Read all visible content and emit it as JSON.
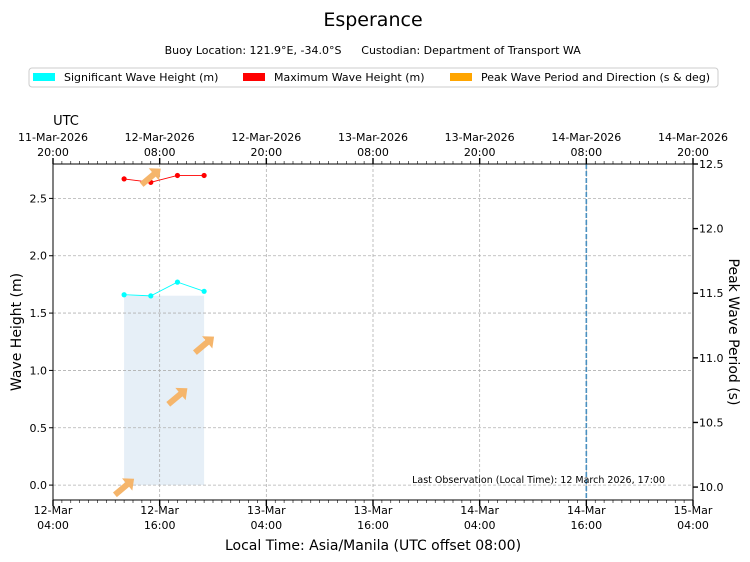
{
  "chart_data": {
    "type": "line",
    "title": "Esperance",
    "subtitle_location": "Buoy Location: 121.9°E, -34.0°S",
    "subtitle_custodian": "Custodian: Department of Transport WA",
    "legend": [
      {
        "label": "Significant Wave Height (m)",
        "color": "#00ffff"
      },
      {
        "label": "Maximum Wave Height (m)",
        "color": "#ff0000"
      },
      {
        "label": "Peak Wave Period and Direction (s & deg)",
        "color": "#ffa500"
      }
    ],
    "x_hours_local": [
      8,
      11,
      14,
      17
    ],
    "series": [
      {
        "name": "Significant Wave Height (m)",
        "color": "#00ffff",
        "values": [
          1.66,
          1.65,
          1.77,
          1.69
        ]
      },
      {
        "name": "Maximum Wave Height (m)",
        "color": "#ff0000",
        "values": [
          2.67,
          2.64,
          2.7,
          2.7
        ]
      }
    ],
    "peak_period": [
      {
        "x_hour": 8,
        "value": 10.0
      },
      {
        "x_hour": 11,
        "value": 12.4
      },
      {
        "x_hour": 14,
        "value": 10.7
      },
      {
        "x_hour": 17,
        "value": 11.1
      }
    ],
    "shade_range_hours": [
      8,
      17
    ],
    "now_marker_hour": 60,
    "xlim_hours": [
      0,
      72
    ],
    "ylim_left": [
      -0.13,
      2.8
    ],
    "ylim_right": [
      9.9,
      12.5
    ],
    "xlabel": "Local Time: Asia/Manila (UTC offset 08:00)",
    "ylabel_left": "Wave Height (m)",
    "ylabel_right": "Peak Wave Period (s)",
    "top_axis_title": "UTC",
    "bottom_ticks": [
      {
        "hour": 0,
        "line1": "12-Mar",
        "line2": "04:00"
      },
      {
        "hour": 12,
        "line1": "12-Mar",
        "line2": "16:00"
      },
      {
        "hour": 24,
        "line1": "13-Mar",
        "line2": "04:00"
      },
      {
        "hour": 36,
        "line1": "13-Mar",
        "line2": "16:00"
      },
      {
        "hour": 48,
        "line1": "14-Mar",
        "line2": "04:00"
      },
      {
        "hour": 60,
        "line1": "14-Mar",
        "line2": "16:00"
      },
      {
        "hour": 72,
        "line1": "15-Mar",
        "line2": "04:00"
      }
    ],
    "top_ticks": [
      {
        "hour": 0,
        "line1": "11-Mar-2026",
        "line2": "20:00"
      },
      {
        "hour": 12,
        "line1": "12-Mar-2026",
        "line2": "08:00"
      },
      {
        "hour": 24,
        "line1": "12-Mar-2026",
        "line2": "20:00"
      },
      {
        "hour": 36,
        "line1": "13-Mar-2026",
        "line2": "08:00"
      },
      {
        "hour": 48,
        "line1": "13-Mar-2026",
        "line2": "20:00"
      },
      {
        "hour": 60,
        "line1": "14-Mar-2026",
        "line2": "08:00"
      },
      {
        "hour": 72,
        "line1": "14-Mar-2026",
        "line2": "20:00"
      }
    ],
    "y_left_ticks": [
      {
        "value": 0.0,
        "label": "0.0"
      },
      {
        "value": 0.5,
        "label": "0.5"
      },
      {
        "value": 1.0,
        "label": "1.0"
      },
      {
        "value": 1.5,
        "label": "1.5"
      },
      {
        "value": 2.0,
        "label": "2.0"
      },
      {
        "value": 2.5,
        "label": "2.5"
      }
    ],
    "y_right_ticks": [
      {
        "value": 10.0,
        "label": "10.0"
      },
      {
        "value": 10.5,
        "label": "10.5"
      },
      {
        "value": 11.0,
        "label": "11.0"
      },
      {
        "value": 11.5,
        "label": "11.5"
      },
      {
        "value": 12.0,
        "label": "12.0"
      },
      {
        "value": 12.5,
        "label": "12.5"
      }
    ],
    "annotation": "Last Observation (Local Time): 12 March 2026, 17:00",
    "grid": true,
    "colors": {
      "shade": "#e6eff7",
      "now_line": "#4a90c0",
      "arrow": "#f5b56b"
    }
  }
}
